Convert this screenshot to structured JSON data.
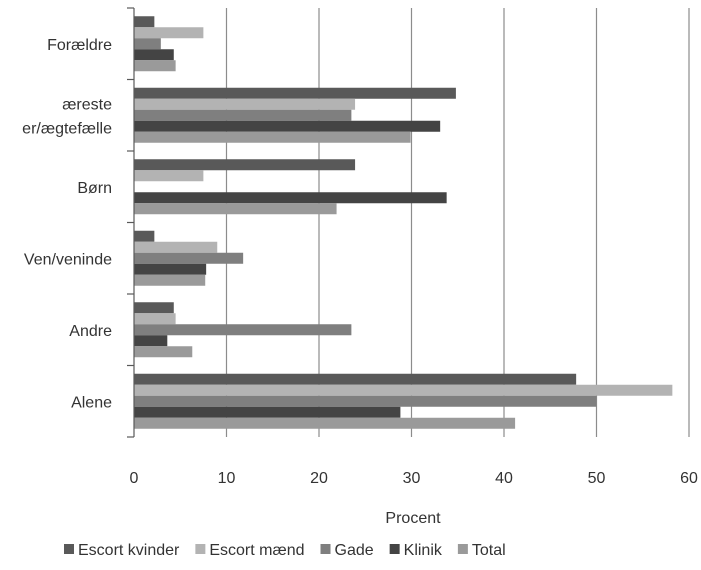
{
  "chart_data": {
    "type": "bar",
    "orientation": "horizontal",
    "categories": [
      "Forældre",
      "Kæreste\nkæster/ægtefælle",
      "Børn",
      "Ven/veninde",
      "Andre",
      "Alene"
    ],
    "category_label_lines": [
      [
        "Forældre"
      ],
      [
        "æreste",
        "er/ægtefælle"
      ],
      [
        "Børn"
      ],
      [
        "Ven/veninde"
      ],
      [
        "Andre"
      ],
      [
        "Alene"
      ]
    ],
    "series": [
      {
        "name": "Escort kvinder",
        "color": "#595959",
        "values": [
          2.2,
          34.8,
          23.9,
          2.2,
          4.3,
          47.8
        ]
      },
      {
        "name": "Escort mænd",
        "color": "#b3b3b3",
        "values": [
          7.5,
          23.9,
          7.5,
          9.0,
          4.5,
          58.2
        ]
      },
      {
        "name": "Gade",
        "color": "#7f7f7f",
        "values": [
          2.9,
          23.5,
          0,
          11.8,
          23.5,
          50.0
        ]
      },
      {
        "name": "Klinik",
        "color": "#444444",
        "values": [
          4.3,
          33.1,
          33.8,
          7.8,
          3.6,
          28.8
        ]
      },
      {
        "name": "Total",
        "color": "#9a9a9a",
        "values": [
          4.5,
          29.9,
          21.9,
          7.7,
          6.3,
          41.2
        ]
      }
    ],
    "xlabel": "Procent",
    "ylabel": "",
    "xlim": [
      0,
      60
    ],
    "xticks": [
      "0",
      "10",
      "20",
      "30",
      "40",
      "50",
      "60"
    ],
    "grid": "vertical",
    "legend_position": "bottom"
  }
}
